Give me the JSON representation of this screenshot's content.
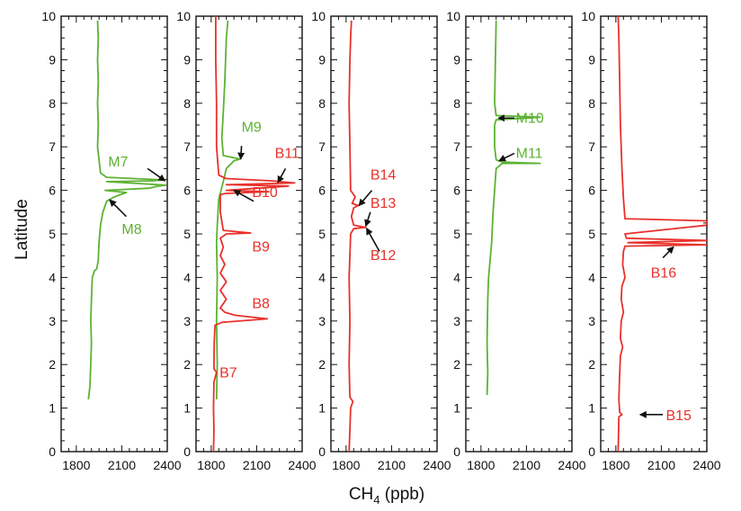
{
  "chart_data": {
    "type": "line",
    "ylabel": "Latitude",
    "xlabel_main": "CH",
    "xlabel_sub": "4",
    "xlabel_unit": " (ppb)",
    "xlim": [
      1700,
      2400
    ],
    "ylim": [
      0,
      10
    ],
    "x_ticks": [
      1800,
      2100,
      2400
    ],
    "y_ticks": [
      0,
      1,
      2,
      3,
      4,
      5,
      6,
      7,
      8,
      9,
      10
    ],
    "colors": {
      "green": "#5db233",
      "red": "#e8312b",
      "arrow": "#111111"
    },
    "panels": [
      {
        "series": [
          {
            "color": "green",
            "points": [
              [
                1880,
                1.2
              ],
              [
                1890,
                1.5
              ],
              [
                1895,
                2.0
              ],
              [
                1900,
                2.5
              ],
              [
                1895,
                3.0
              ],
              [
                1900,
                3.5
              ],
              [
                1905,
                4.0
              ],
              [
                1920,
                4.15
              ],
              [
                1935,
                4.2
              ],
              [
                1945,
                4.4
              ],
              [
                1950,
                4.8
              ],
              [
                1960,
                5.2
              ],
              [
                1975,
                5.5
              ],
              [
                2000,
                5.75
              ],
              [
                2050,
                5.85
              ],
              [
                2130,
                5.95
              ],
              [
                1990,
                6.0
              ],
              [
                2280,
                6.05
              ],
              [
                2340,
                6.1
              ],
              [
                2390,
                6.12
              ],
              [
                2100,
                6.18
              ],
              [
                2000,
                6.2
              ],
              [
                2300,
                6.22
              ],
              [
                2385,
                6.24
              ],
              [
                2000,
                6.3
              ],
              [
                1960,
                6.4
              ],
              [
                1950,
                6.7
              ],
              [
                1940,
                7.0
              ],
              [
                1945,
                7.5
              ],
              [
                1940,
                8.0
              ],
              [
                1945,
                8.5
              ],
              [
                1940,
                9.0
              ],
              [
                1945,
                9.5
              ],
              [
                1940,
                9.9
              ]
            ]
          }
        ],
        "annotations": [
          {
            "label": "M7",
            "color": "green",
            "text_x": 2010,
            "text_y": 6.55,
            "arrow_from": [
              2270,
              6.5
            ],
            "arrow_to": [
              2385,
              6.22
            ]
          },
          {
            "label": "M8",
            "color": "green",
            "text_x": 2100,
            "text_y": 5.0,
            "arrow_from": [
              2130,
              5.4
            ],
            "arrow_to": [
              2020,
              5.78
            ]
          }
        ]
      },
      {
        "series": [
          {
            "color": "green",
            "points": [
              [
                1835,
                1.2
              ],
              [
                1840,
                2.0
              ],
              [
                1835,
                3.0
              ],
              [
                1840,
                4.0
              ],
              [
                1835,
                4.8
              ],
              [
                1840,
                5.2
              ],
              [
                1850,
                5.8
              ],
              [
                1880,
                6.2
              ],
              [
                1900,
                6.5
              ],
              [
                1950,
                6.68
              ],
              [
                1990,
                6.72
              ],
              [
                1880,
                6.8
              ],
              [
                1870,
                7.2
              ],
              [
                1880,
                7.8
              ],
              [
                1890,
                8.5
              ],
              [
                1900,
                9.5
              ],
              [
                1910,
                9.9
              ]
            ]
          },
          {
            "color": "red",
            "points": [
              [
                1815,
                0.0
              ],
              [
                1818,
                0.5
              ],
              [
                1815,
                1.0
              ],
              [
                1818,
                1.6
              ],
              [
                1835,
                1.82
              ],
              [
                1818,
                1.9
              ],
              [
                1820,
                2.5
              ],
              [
                1825,
                2.9
              ],
              [
                1870,
                2.97
              ],
              [
                2170,
                3.05
              ],
              [
                1960,
                3.13
              ],
              [
                1890,
                3.2
              ],
              [
                1860,
                3.3
              ],
              [
                1900,
                3.5
              ],
              [
                1860,
                3.7
              ],
              [
                1900,
                3.9
              ],
              [
                1860,
                4.1
              ],
              [
                1890,
                4.3
              ],
              [
                1860,
                4.5
              ],
              [
                1880,
                4.7
              ],
              [
                1860,
                4.9
              ],
              [
                1900,
                5.0
              ],
              [
                2060,
                5.02
              ],
              [
                1880,
                5.08
              ],
              [
                1860,
                5.5
              ],
              [
                1860,
                5.9
              ],
              [
                1895,
                5.93
              ],
              [
                2180,
                5.97
              ],
              [
                1900,
                6.0
              ],
              [
                2310,
                6.1
              ],
              [
                1900,
                6.13
              ],
              [
                2350,
                6.17
              ],
              [
                2200,
                6.22
              ],
              [
                1900,
                6.27
              ],
              [
                1850,
                6.35
              ],
              [
                1835,
                7.0
              ],
              [
                1835,
                8.0
              ],
              [
                1830,
                9.0
              ],
              [
                1830,
                9.5
              ],
              [
                1830,
                10.0
              ]
            ]
          }
        ],
        "annotations": [
          {
            "label": "M9",
            "color": "green",
            "text_x": 2000,
            "text_y": 7.35,
            "arrow_from": [
              2000,
              7.02
            ],
            "arrow_to": [
              1995,
              6.72
            ]
          },
          {
            "label": "B11",
            "color": "red",
            "text_x": 2220,
            "text_y": 6.75,
            "arrow_from": [
              2290,
              6.5
            ],
            "arrow_to": [
              2240,
              6.18
            ]
          },
          {
            "label": "B10",
            "color": "red",
            "text_x": 2070,
            "text_y": 5.85,
            "arrow_from": [
              2080,
              5.75
            ],
            "arrow_to": [
              1950,
              6.0
            ]
          },
          {
            "label": "B9",
            "color": "red",
            "text_x": 2070,
            "text_y": 4.6,
            "arrow_from": null,
            "arrow_to": null
          },
          {
            "label": "B8",
            "color": "red",
            "text_x": 2070,
            "text_y": 3.3,
            "arrow_from": null,
            "arrow_to": null
          },
          {
            "label": "B7",
            "color": "red",
            "text_x": 1855,
            "text_y": 1.7,
            "arrow_from": null,
            "arrow_to": null
          }
        ]
      },
      {
        "series": [
          {
            "color": "red",
            "points": [
              [
                1820,
                0.0
              ],
              [
                1825,
                0.5
              ],
              [
                1830,
                1.0
              ],
              [
                1845,
                1.15
              ],
              [
                1825,
                1.25
              ],
              [
                1820,
                2.0
              ],
              [
                1825,
                3.0
              ],
              [
                1820,
                4.0
              ],
              [
                1825,
                4.5
              ],
              [
                1830,
                5.0
              ],
              [
                1850,
                5.12
              ],
              [
                1930,
                5.15
              ],
              [
                1850,
                5.2
              ],
              [
                1835,
                5.4
              ],
              [
                1850,
                5.6
              ],
              [
                1880,
                5.65
              ],
              [
                1840,
                5.7
              ],
              [
                1860,
                5.85
              ],
              [
                1830,
                6.0
              ],
              [
                1825,
                7.0
              ],
              [
                1820,
                8.0
              ],
              [
                1825,
                9.0
              ],
              [
                1830,
                9.5
              ],
              [
                1835,
                9.9
              ]
            ]
          }
        ],
        "annotations": [
          {
            "label": "B14",
            "color": "red",
            "text_x": 1960,
            "text_y": 6.25,
            "arrow_from": [
              1970,
              6.0
            ],
            "arrow_to": [
              1885,
              5.65
            ]
          },
          {
            "label": "B13",
            "color": "red",
            "text_x": 1960,
            "text_y": 5.6,
            "arrow_from": [
              1960,
              5.5
            ],
            "arrow_to": [
              1930,
              5.18
            ]
          },
          {
            "label": "B12",
            "color": "red",
            "text_x": 1960,
            "text_y": 4.4,
            "arrow_from": [
              2020,
              4.6
            ],
            "arrow_to": [
              1935,
              5.13
            ]
          }
        ]
      },
      {
        "series": [
          {
            "color": "green",
            "points": [
              [
                1840,
                1.3
              ],
              [
                1845,
                1.8
              ],
              [
                1840,
                2.5
              ],
              [
                1845,
                3.5
              ],
              [
                1850,
                4.0
              ],
              [
                1870,
                4.8
              ],
              [
                1880,
                5.5
              ],
              [
                1890,
                6.0
              ],
              [
                1900,
                6.5
              ],
              [
                1940,
                6.62
              ],
              [
                2190,
                6.62
              ],
              [
                1940,
                6.65
              ],
              [
                1900,
                6.7
              ],
              [
                1890,
                7.0
              ],
              [
                1890,
                7.5
              ],
              [
                1900,
                7.62
              ],
              [
                2090,
                7.66
              ],
              [
                2190,
                7.68
              ],
              [
                1900,
                7.72
              ],
              [
                1890,
                8.0
              ],
              [
                1895,
                9.0
              ],
              [
                1900,
                9.9
              ]
            ]
          }
        ],
        "annotations": [
          {
            "label": "M10",
            "color": "green",
            "text_x": 2030,
            "text_y": 7.55,
            "arrow_from": [
              2020,
              7.66
            ],
            "arrow_to": [
              1915,
              7.66
            ]
          },
          {
            "label": "M11",
            "color": "green",
            "text_x": 2030,
            "text_y": 6.75,
            "arrow_from": [
              2020,
              6.85
            ],
            "arrow_to": [
              1920,
              6.68
            ]
          }
        ]
      },
      {
        "series": [
          {
            "color": "red",
            "points": [
              [
                1815,
                0.0
              ],
              [
                1818,
                0.5
              ],
              [
                1820,
                0.8
              ],
              [
                1840,
                0.85
              ],
              [
                1825,
                0.9
              ],
              [
                1820,
                1.2
              ],
              [
                1825,
                1.8
              ],
              [
                1830,
                2.2
              ],
              [
                1845,
                2.4
              ],
              [
                1830,
                2.6
              ],
              [
                1835,
                3.0
              ],
              [
                1850,
                3.2
              ],
              [
                1835,
                3.5
              ],
              [
                1840,
                3.8
              ],
              [
                1860,
                4.0
              ],
              [
                1845,
                4.3
              ],
              [
                1850,
                4.6
              ],
              [
                1860,
                4.72
              ],
              [
                2400,
                4.75
              ],
              [
                1880,
                4.8
              ],
              [
                2400,
                4.85
              ],
              [
                1870,
                4.9
              ],
              [
                1860,
                5.0
              ],
              [
                2400,
                5.2
              ],
              [
                2400,
                5.3
              ],
              [
                1860,
                5.35
              ],
              [
                1850,
                5.8
              ],
              [
                1840,
                6.5
              ],
              [
                1830,
                7.5
              ],
              [
                1825,
                8.5
              ],
              [
                1820,
                9.5
              ],
              [
                1815,
                10.0
              ]
            ]
          }
        ],
        "annotations": [
          {
            "label": "B16",
            "color": "red",
            "text_x": 2030,
            "text_y": 4.0,
            "arrow_from": [
              2110,
              4.45
            ],
            "arrow_to": [
              2180,
              4.7
            ]
          },
          {
            "label": "B15",
            "color": "red",
            "text_x": 2130,
            "text_y": 0.72,
            "arrow_from": [
              2110,
              0.85
            ],
            "arrow_to": [
              1960,
              0.85
            ]
          }
        ]
      }
    ]
  }
}
